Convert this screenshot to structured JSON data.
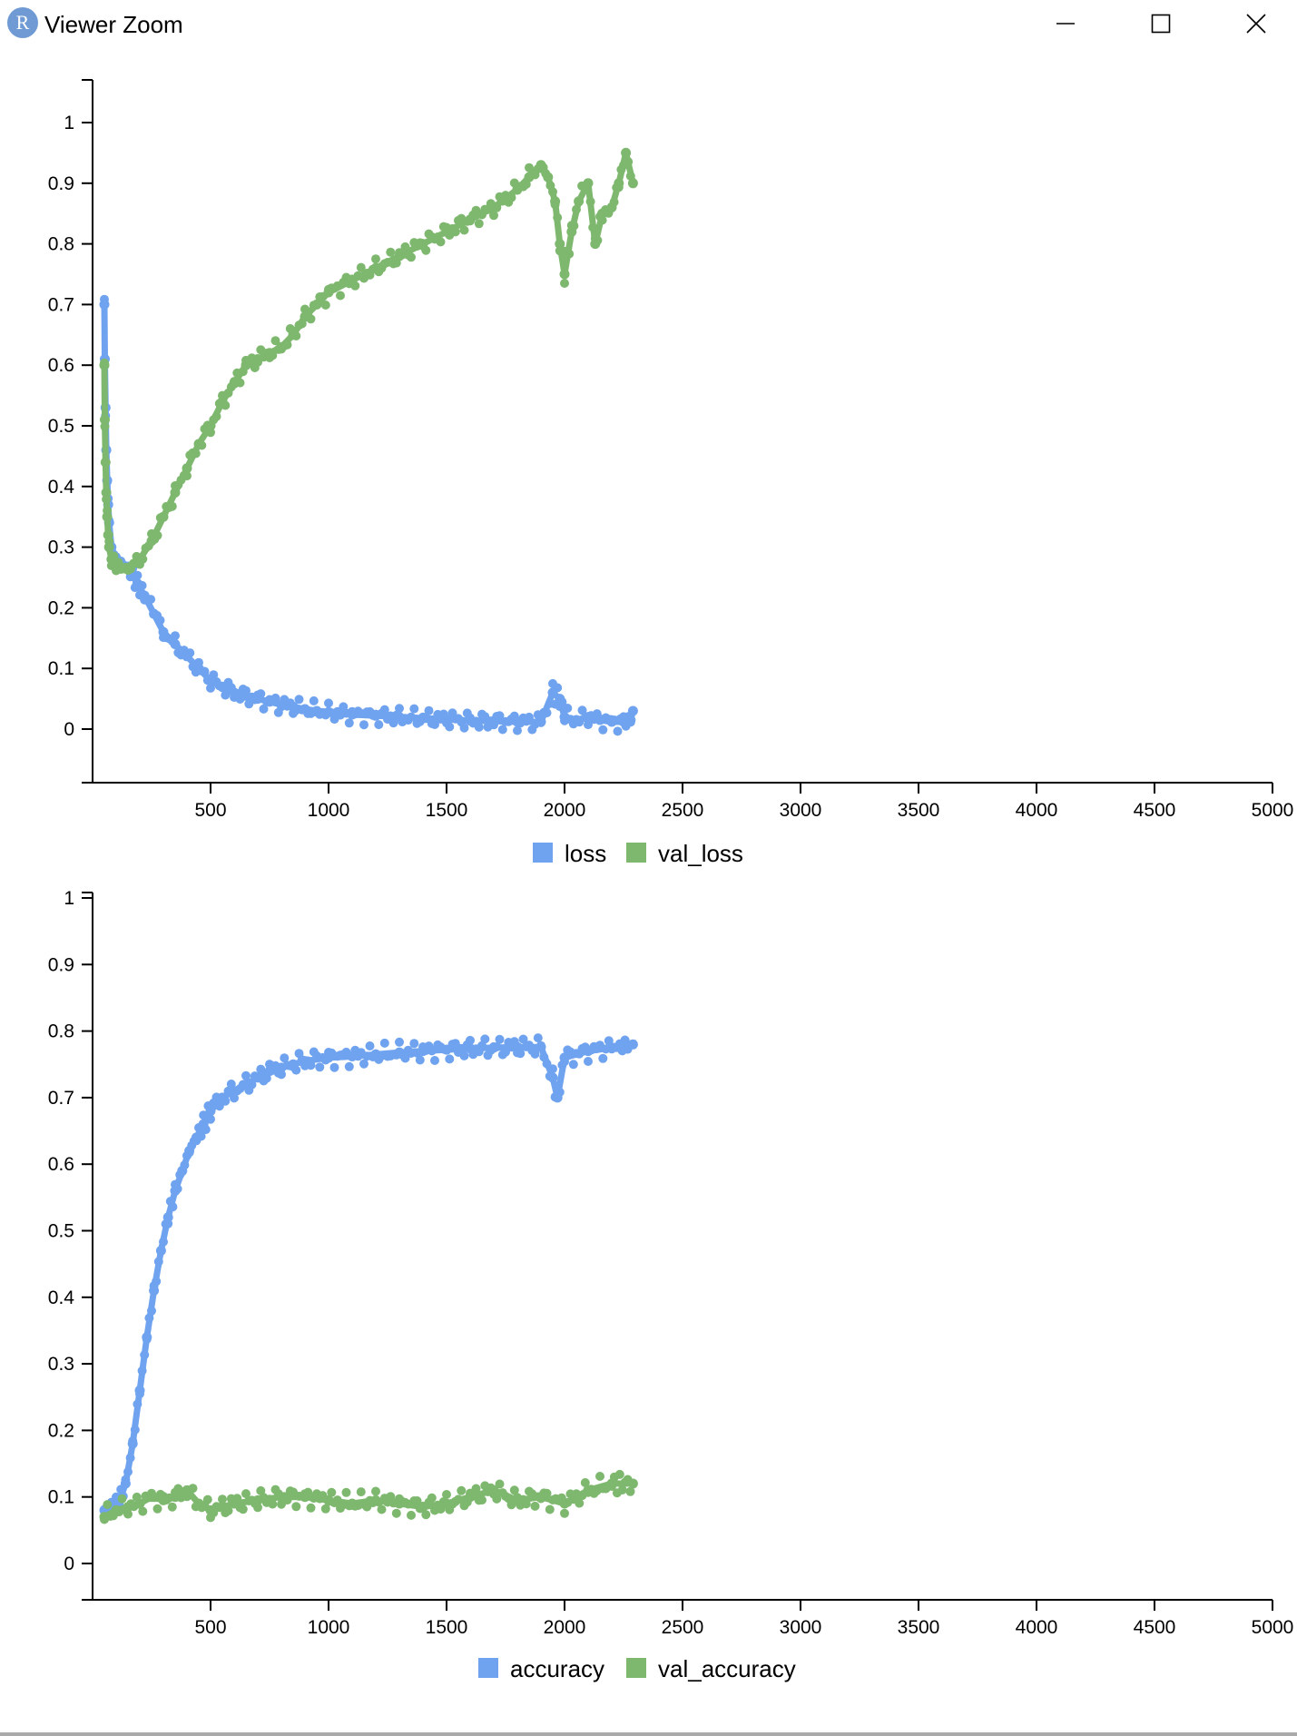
{
  "window": {
    "title": "Viewer Zoom",
    "icon_letter": "R",
    "controls": {
      "minimize_icon": "minimize-icon",
      "maximize_icon": "maximize-icon",
      "close_icon": "close-icon"
    }
  },
  "colors": {
    "loss": "#6fa3ef",
    "val": "#7eb86f",
    "axis": "#000000",
    "accent_icon": "#6f9ad3"
  },
  "chart_data": [
    {
      "type": "scatter",
      "title": "",
      "xlabel": "",
      "ylabel": "",
      "xlim": [
        0,
        5000
      ],
      "ylim": [
        -0.1,
        1.05
      ],
      "x_ticks": [
        "500",
        "1000",
        "1500",
        "2000",
        "2500",
        "3000",
        "3500",
        "4000",
        "4500",
        "5000"
      ],
      "y_ticks": [
        "0",
        "0.1",
        "0.2",
        "0.3",
        "0.4",
        "0.5",
        "0.6",
        "0.7",
        "0.8",
        "0.9",
        "1"
      ],
      "legend_position": "bottom-center",
      "grid": false,
      "series": [
        {
          "name": "loss",
          "color": "#6fa3ef",
          "x": [
            50,
            52,
            55,
            58,
            62,
            66,
            70,
            80,
            100,
            130,
            160,
            190,
            220,
            260,
            300,
            350,
            400,
            450,
            500,
            550,
            600,
            650,
            700,
            750,
            800,
            850,
            900,
            950,
            1000,
            1050,
            1100,
            1200,
            1300,
            1400,
            1500,
            1600,
            1700,
            1800,
            1900,
            1950,
            1980,
            2000,
            2050,
            2100,
            2150,
            2200,
            2250,
            2280,
            2290
          ],
          "y": [
            0.7,
            0.61,
            0.53,
            0.46,
            0.41,
            0.37,
            0.34,
            0.3,
            0.28,
            0.27,
            0.26,
            0.24,
            0.22,
            0.19,
            0.16,
            0.14,
            0.12,
            0.1,
            0.08,
            0.07,
            0.06,
            0.055,
            0.05,
            0.045,
            0.04,
            0.037,
            0.033,
            0.03,
            0.028,
            0.026,
            0.024,
            0.022,
            0.02,
            0.018,
            0.016,
            0.014,
            0.013,
            0.012,
            0.012,
            0.06,
            0.05,
            0.02,
            0.015,
            0.02,
            0.015,
            0.012,
            0.012,
            0.015,
            0.03
          ]
        },
        {
          "name": "val_loss",
          "color": "#7eb86f",
          "x": [
            50,
            52,
            55,
            58,
            62,
            66,
            70,
            80,
            100,
            130,
            160,
            200,
            250,
            300,
            350,
            400,
            450,
            500,
            550,
            600,
            650,
            700,
            750,
            800,
            850,
            900,
            950,
            1000,
            1100,
            1200,
            1300,
            1400,
            1500,
            1600,
            1700,
            1800,
            1850,
            1900,
            1930,
            1960,
            1980,
            2000,
            2030,
            2060,
            2100,
            2130,
            2160,
            2200,
            2230,
            2260,
            2290
          ],
          "y": [
            0.6,
            0.51,
            0.44,
            0.39,
            0.35,
            0.32,
            0.3,
            0.28,
            0.27,
            0.265,
            0.265,
            0.28,
            0.31,
            0.35,
            0.39,
            0.43,
            0.47,
            0.5,
            0.54,
            0.57,
            0.6,
            0.61,
            0.62,
            0.63,
            0.65,
            0.68,
            0.7,
            0.72,
            0.74,
            0.76,
            0.78,
            0.8,
            0.82,
            0.84,
            0.86,
            0.89,
            0.91,
            0.93,
            0.91,
            0.87,
            0.8,
            0.75,
            0.82,
            0.87,
            0.9,
            0.8,
            0.85,
            0.86,
            0.9,
            0.95,
            0.9
          ]
        }
      ]
    },
    {
      "type": "scatter",
      "title": "",
      "xlabel": "",
      "ylabel": "",
      "xlim": [
        0,
        5000
      ],
      "ylim": [
        -0.05,
        1.0
      ],
      "x_ticks": [
        "500",
        "1000",
        "1500",
        "2000",
        "2500",
        "3000",
        "3500",
        "4000",
        "4500",
        "5000"
      ],
      "y_ticks": [
        "0",
        "0.1",
        "0.2",
        "0.3",
        "0.4",
        "0.5",
        "0.6",
        "0.7",
        "0.8",
        "0.9",
        "1"
      ],
      "legend_position": "bottom-center",
      "grid": false,
      "series": [
        {
          "name": "accuracy",
          "color": "#6fa3ef",
          "x": [
            50,
            80,
            110,
            140,
            170,
            200,
            230,
            260,
            290,
            320,
            350,
            380,
            410,
            440,
            470,
            500,
            550,
            600,
            650,
            700,
            750,
            800,
            850,
            900,
            1000,
            1100,
            1200,
            1300,
            1400,
            1500,
            1600,
            1700,
            1800,
            1900,
            1950,
            1970,
            2000,
            2100,
            2200,
            2290
          ],
          "y": [
            0.08,
            0.085,
            0.09,
            0.12,
            0.18,
            0.26,
            0.34,
            0.41,
            0.47,
            0.52,
            0.56,
            0.59,
            0.62,
            0.64,
            0.66,
            0.68,
            0.7,
            0.71,
            0.72,
            0.73,
            0.74,
            0.745,
            0.75,
            0.755,
            0.76,
            0.762,
            0.765,
            0.768,
            0.77,
            0.772,
            0.774,
            0.775,
            0.776,
            0.776,
            0.73,
            0.7,
            0.76,
            0.77,
            0.775,
            0.78
          ]
        },
        {
          "name": "val_accuracy",
          "color": "#7eb86f",
          "x": [
            50,
            100,
            150,
            200,
            250,
            300,
            350,
            400,
            450,
            500,
            550,
            600,
            700,
            800,
            900,
            1000,
            1100,
            1200,
            1300,
            1400,
            1500,
            1600,
            1700,
            1800,
            1900,
            2000,
            2100,
            2200,
            2290
          ],
          "y": [
            0.07,
            0.08,
            0.085,
            0.09,
            0.1,
            0.095,
            0.1,
            0.11,
            0.09,
            0.08,
            0.085,
            0.09,
            0.095,
            0.1,
            0.1,
            0.095,
            0.09,
            0.095,
            0.09,
            0.085,
            0.09,
            0.1,
            0.11,
            0.095,
            0.1,
            0.09,
            0.11,
            0.12,
            0.12
          ]
        }
      ]
    }
  ]
}
